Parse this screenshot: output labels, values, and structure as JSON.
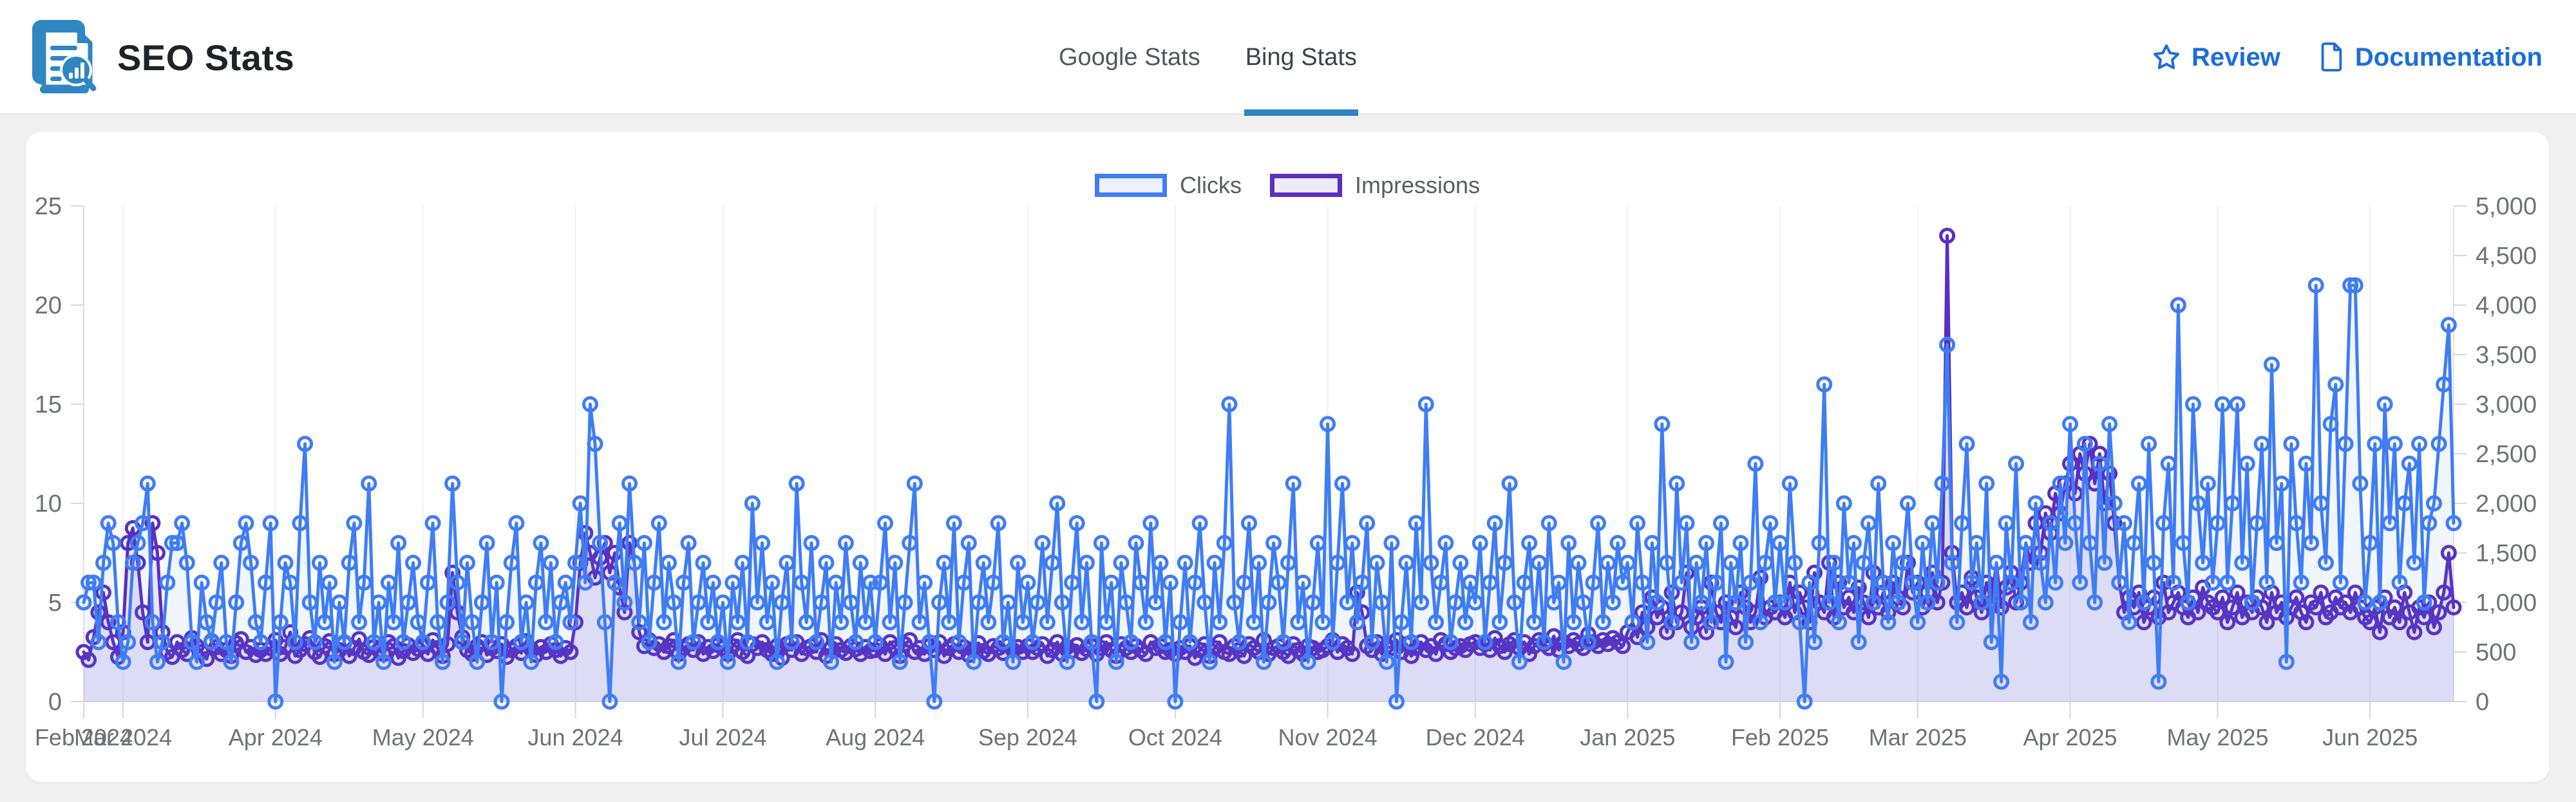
{
  "page": {
    "background": "#f0f0f1",
    "card_background": "#ffffff"
  },
  "header": {
    "title": "SEO Stats",
    "accent_color": "#2e81c4",
    "link_color": "#1c6ed8",
    "tabs": [
      {
        "label": "Google Stats",
        "active": false
      },
      {
        "label": "Bing Stats",
        "active": true
      }
    ],
    "links": [
      {
        "label": "Review",
        "icon": "star-icon"
      },
      {
        "label": "Documentation",
        "icon": "document-icon"
      }
    ]
  },
  "legend": {
    "items": [
      {
        "label": "Clicks",
        "border": "#3f7df5",
        "fill": "#ecf1fd"
      },
      {
        "label": "Impressions",
        "border": "#5a2fc0",
        "fill": "#edebf8"
      }
    ]
  },
  "chart_data": {
    "type": "line",
    "frequency": "daily",
    "start_date": "2024-02-22",
    "end_date": "2025-06-18",
    "legend_position": "top-center",
    "grid": {
      "vertical_month_lines": true,
      "horizontal_lines": false
    },
    "y_left": {
      "title": "Clicks",
      "min": 0,
      "max": 25,
      "ticks": [
        "0",
        "5",
        "10",
        "15",
        "20",
        "25"
      ]
    },
    "y_right": {
      "title": "Impressions",
      "min": 0,
      "max": 5000,
      "ticks": [
        "0",
        "500",
        "1,000",
        "1,500",
        "2,000",
        "2,500",
        "3,000",
        "3,500",
        "4,000",
        "4,500",
        "5,000"
      ]
    },
    "x_month_ticks": [
      {
        "index": 0,
        "label": "Feb 2024"
      },
      {
        "index": 8,
        "label": "Mar 2024"
      },
      {
        "index": 39,
        "label": "Apr 2024"
      },
      {
        "index": 69,
        "label": "May 2024"
      },
      {
        "index": 100,
        "label": "Jun 2024"
      },
      {
        "index": 130,
        "label": "Jul 2024"
      },
      {
        "index": 161,
        "label": "Aug 2024"
      },
      {
        "index": 192,
        "label": "Sep 2024"
      },
      {
        "index": 222,
        "label": "Oct 2024"
      },
      {
        "index": 253,
        "label": "Nov 2024"
      },
      {
        "index": 283,
        "label": "Dec 2024"
      },
      {
        "index": 314,
        "label": "Jan 2025"
      },
      {
        "index": 345,
        "label": "Feb 2025"
      },
      {
        "index": 373,
        "label": "Mar 2025"
      },
      {
        "index": 404,
        "label": "Apr 2025"
      },
      {
        "index": 434,
        "label": "May 2025"
      },
      {
        "index": 465,
        "label": "Jun 2025"
      }
    ],
    "series": [
      {
        "name": "Clicks",
        "axis": "left",
        "color": "#3f7df5",
        "area_fill": "rgba(63,125,245,0.08)",
        "values": [
          5,
          6,
          6,
          3,
          7,
          9,
          8,
          4,
          2,
          3,
          7,
          8,
          9,
          11,
          4,
          2,
          3,
          6,
          8,
          8,
          9,
          7,
          3,
          2,
          6,
          4,
          3,
          5,
          7,
          3,
          2,
          5,
          8,
          9,
          7,
          4,
          3,
          6,
          9,
          0,
          4,
          7,
          6,
          3,
          9,
          13,
          5,
          3,
          7,
          4,
          6,
          2,
          5,
          3,
          7,
          9,
          4,
          6,
          11,
          3,
          5,
          2,
          6,
          4,
          8,
          3,
          5,
          7,
          4,
          3,
          6,
          9,
          4,
          2,
          5,
          11,
          6,
          3,
          7,
          4,
          2,
          5,
          8,
          3,
          6,
          0,
          4,
          7,
          9,
          3,
          5,
          2,
          6,
          8,
          4,
          7,
          3,
          5,
          6,
          4,
          7,
          10,
          6,
          15,
          13,
          8,
          4,
          0,
          6,
          9,
          5,
          11,
          7,
          4,
          8,
          3,
          6,
          9,
          4,
          7,
          5,
          2,
          6,
          8,
          3,
          5,
          7,
          4,
          6,
          3,
          5,
          2,
          6,
          4,
          7,
          3,
          10,
          5,
          8,
          4,
          6,
          2,
          5,
          7,
          3,
          11,
          6,
          4,
          8,
          3,
          5,
          7,
          2,
          6,
          4,
          8,
          5,
          3,
          7,
          4,
          6,
          3,
          6,
          9,
          4,
          7,
          2,
          5,
          8,
          11,
          4,
          6,
          3,
          0,
          5,
          7,
          4,
          9,
          3,
          6,
          8,
          2,
          5,
          7,
          4,
          6,
          9,
          3,
          5,
          2,
          7,
          4,
          6,
          3,
          5,
          8,
          4,
          7,
          10,
          5,
          2,
          6,
          9,
          4,
          7,
          3,
          0,
          8,
          4,
          6,
          2,
          7,
          5,
          3,
          8,
          6,
          4,
          9,
          5,
          7,
          3,
          6,
          0,
          4,
          7,
          3,
          6,
          9,
          5,
          2,
          7,
          4,
          8,
          15,
          5,
          3,
          6,
          9,
          4,
          7,
          2,
          5,
          8,
          6,
          3,
          7,
          11,
          4,
          6,
          2,
          5,
          8,
          4,
          14,
          3,
          7,
          11,
          5,
          8,
          4,
          6,
          9,
          3,
          7,
          5,
          2,
          8,
          0,
          4,
          7,
          3,
          9,
          5,
          15,
          7,
          4,
          6,
          8,
          3,
          5,
          7,
          4,
          6,
          5,
          8,
          3,
          6,
          9,
          4,
          7,
          11,
          5,
          2,
          6,
          8,
          4,
          7,
          3,
          9,
          5,
          6,
          2,
          8,
          4,
          7,
          5,
          3,
          6,
          9,
          4,
          7,
          5,
          8,
          6,
          7,
          4,
          9,
          6,
          3,
          8,
          5,
          14,
          7,
          4,
          11,
          6,
          9,
          3,
          7,
          5,
          8,
          4,
          6,
          9,
          2,
          7,
          5,
          8,
          3,
          6,
          12,
          4,
          7,
          9,
          5,
          8,
          5,
          11,
          7,
          4,
          0,
          6,
          3,
          8,
          16,
          5,
          7,
          4,
          10,
          6,
          8,
          3,
          7,
          9,
          5,
          11,
          6,
          4,
          8,
          5,
          7,
          10,
          6,
          4,
          8,
          5,
          9,
          6,
          11,
          18,
          7,
          4,
          9,
          13,
          6,
          8,
          5,
          11,
          3,
          7,
          1,
          9,
          6,
          12,
          5,
          8,
          4,
          10,
          7,
          5,
          9,
          6,
          11,
          8,
          14,
          9,
          6,
          13,
          8,
          5,
          12,
          7,
          14,
          10,
          6,
          9,
          4,
          8,
          11,
          5,
          13,
          7,
          1,
          9,
          12,
          6,
          20,
          8,
          5,
          15,
          10,
          7,
          11,
          6,
          9,
          15,
          6,
          10,
          15,
          7,
          12,
          5,
          9,
          13,
          6,
          17,
          8,
          11,
          2,
          13,
          9,
          6,
          12,
          8,
          21,
          10,
          7,
          14,
          16,
          6,
          13,
          21,
          21,
          11,
          5,
          8,
          13,
          5,
          15,
          9,
          13,
          6,
          10,
          12,
          7,
          13,
          5,
          9,
          10,
          13,
          16,
          19,
          9
        ]
      },
      {
        "name": "Impressions",
        "axis": "right",
        "color": "#5a2fc0",
        "area_fill": "rgba(90,47,192,0.13)",
        "values": [
          500,
          420,
          650,
          900,
          1100,
          800,
          600,
          450,
          700,
          1600,
          1750,
          1400,
          900,
          600,
          1800,
          1500,
          700,
          500,
          450,
          600,
          520,
          480,
          640,
          560,
          500,
          430,
          610,
          550,
          480,
          520,
          460,
          590,
          630,
          500,
          550,
          470,
          520,
          480,
          540,
          620,
          480,
          550,
          700,
          460,
          520,
          580,
          640,
          500,
          450,
          560,
          610,
          480,
          520,
          590,
          460,
          540,
          630,
          500,
          470,
          550,
          520,
          480,
          600,
          560,
          440,
          510,
          570,
          490,
          530,
          560,
          480,
          620,
          540,
          460,
          580,
          1300,
          900,
          650,
          520,
          480,
          560,
          600,
          470,
          540,
          510,
          580,
          450,
          520,
          560,
          490,
          610,
          530,
          470,
          550,
          500,
          580,
          520,
          460,
          540,
          500,
          800,
          1400,
          1700,
          1500,
          1250,
          1450,
          1600,
          1300,
          1500,
          1150,
          900,
          1600,
          1400,
          700,
          560,
          620,
          540,
          580,
          500,
          560,
          620,
          480,
          540,
          580,
          520,
          600,
          480,
          550,
          510,
          570,
          540,
          480,
          560,
          620,
          500,
          460,
          580,
          540,
          600,
          520,
          480,
          560,
          440,
          580,
          520,
          600,
          480,
          540,
          560,
          500,
          620,
          460,
          540,
          580,
          520,
          490,
          560,
          530,
          480,
          550,
          510,
          520,
          560,
          480,
          600,
          540,
          460,
          580,
          620,
          500,
          540,
          480,
          560,
          520,
          600,
          460,
          540,
          580,
          500,
          550,
          470,
          530,
          590,
          510,
          480,
          560,
          540,
          490,
          570,
          520,
          550,
          500,
          560,
          500,
          540,
          580,
          460,
          520,
          600,
          480,
          550,
          510,
          570,
          490,
          530,
          560,
          480,
          540,
          600,
          520,
          460,
          580,
          540,
          500,
          560,
          520,
          480,
          600,
          540,
          560,
          500,
          520,
          480,
          540,
          500,
          560,
          440,
          520,
          580,
          460,
          540,
          600,
          500,
          480,
          560,
          520,
          460,
          580,
          540,
          500,
          620,
          480,
          540,
          560,
          500,
          460,
          580,
          520,
          480,
          560,
          540,
          500,
          520,
          560,
          620,
          500,
          580,
          540,
          480,
          1100,
          900,
          560,
          520,
          600,
          480,
          560,
          540,
          620,
          500,
          580,
          460,
          540,
          600,
          520,
          560,
          480,
          620,
          580,
          500,
          540,
          560,
          520,
          580,
          600,
          540,
          580,
          520,
          640,
          560,
          500,
          580,
          620,
          540,
          600,
          480,
          560,
          620,
          580,
          540,
          660,
          520,
          600,
          560,
          620,
          580,
          540,
          680,
          600,
          560,
          620,
          580,
          640,
          600,
          560,
          700,
          800,
          650,
          900,
          750,
          1050,
          850,
          950,
          700,
          1100,
          800,
          900,
          1300,
          750,
          850,
          950,
          700,
          1200,
          900,
          800,
          1000,
          850,
          750,
          1100,
          950,
          800,
          900,
          1250,
          850,
          950,
          900,
          1000,
          850,
          1200,
          900,
          1100,
          950,
          800,
          1300,
          1000,
          900,
          1400,
          850,
          1200,
          950,
          1050,
          900,
          1150,
          1000,
          850,
          1300,
          950,
          1100,
          900,
          1200,
          1050,
          950,
          1400,
          1100,
          1200,
          950,
          1100,
          1300,
          1000,
          1200,
          4700,
          1500,
          1000,
          1100,
          950,
          1250,
          1050,
          900,
          1200,
          1000,
          1400,
          950,
          1150,
          1300,
          1000,
          1200,
          1600,
          1400,
          1800,
          1500,
          1900,
          1700,
          2100,
          1900,
          2200,
          2400,
          2100,
          2500,
          2300,
          2600,
          2200,
          2500,
          2000,
          2300,
          1800,
          1200,
          900,
          1050,
          950,
          1100,
          800,
          950,
          1050,
          850,
          1200,
          900,
          1000,
          1100,
          950,
          850,
          1050,
          900,
          1150,
          1000,
          950,
          900,
          1050,
          800,
          950,
          1100,
          850,
          1000,
          900,
          1050,
          950,
          800,
          1100,
          900,
          1000,
          850,
          950,
          1050,
          900,
          800,
          1000,
          950,
          1100,
          850,
          900,
          1050,
          950,
          1000,
          900,
          1100,
          950,
          850,
          800,
          950,
          700,
          1050,
          850,
          950,
          800,
          1100,
          900,
          700,
          950,
          850,
          1000,
          750,
          900,
          1100,
          1500,
          950
        ]
      }
    ]
  }
}
